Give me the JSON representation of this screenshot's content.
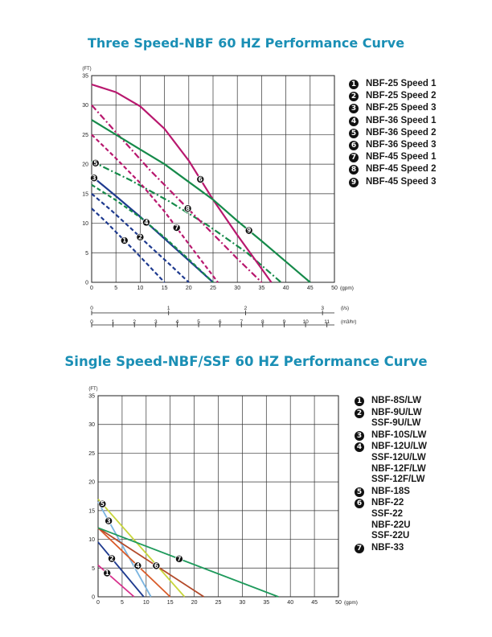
{
  "titles": {
    "chart1": "Three Speed-NBF 60 HZ Performance Curve",
    "chart2": "Single Speed-NBF/SSF 60 HZ Performance Curve"
  },
  "chart_data": [
    {
      "type": "line",
      "title": "Three Speed-NBF 60 HZ Performance Curve",
      "ylabel": "(FT)",
      "xlabel": "(gpm)",
      "xlim": [
        0,
        50
      ],
      "ylim": [
        0,
        35
      ],
      "x_ticks": [
        0,
        5,
        10,
        15,
        20,
        25,
        30,
        35,
        40,
        45,
        50
      ],
      "y_ticks": [
        0,
        5,
        10,
        15,
        20,
        25,
        30,
        35
      ],
      "grid": true,
      "legend_position": "right",
      "secondary_axes": [
        {
          "unit": "(l/s)",
          "ticks": [
            0,
            1,
            2,
            3
          ]
        },
        {
          "unit": "(m3/hr)",
          "ticks": [
            0,
            1,
            2,
            3,
            4,
            5,
            6,
            7,
            8,
            9,
            10,
            11
          ]
        }
      ],
      "series": [
        {
          "marker": "1",
          "name": "NBF-25 Speed 1",
          "color": "#1e3a8f",
          "style": "dashed",
          "x": [
            0,
            3,
            6,
            9,
            12,
            15
          ],
          "y": [
            12.5,
            10.2,
            7.7,
            5.2,
            2.6,
            0
          ]
        },
        {
          "marker": "2",
          "name": "NBF-25 Speed 2",
          "color": "#1e3a8f",
          "style": "dashed",
          "x": [
            0,
            4,
            8,
            12,
            16,
            20
          ],
          "y": [
            15,
            12.2,
            9.2,
            6.1,
            3.1,
            0
          ]
        },
        {
          "marker": "3",
          "name": "NBF-25 Speed 3",
          "color": "#1e3a8f",
          "style": "solid",
          "x": [
            0,
            5,
            10,
            15,
            20,
            25
          ],
          "y": [
            18,
            14.6,
            11.1,
            7.4,
            3.7,
            0
          ]
        },
        {
          "marker": "4",
          "name": "NBF-36 Speed 1",
          "color": "#168a4a",
          "style": "dashed",
          "x": [
            0,
            5,
            10,
            15,
            20,
            25
          ],
          "y": [
            16.5,
            13.9,
            11,
            7.6,
            3.9,
            0
          ]
        },
        {
          "marker": "5",
          "name": "NBF-36 Speed 2",
          "color": "#168a4a",
          "style": "dashdot",
          "x": [
            0,
            8,
            16,
            24,
            32,
            39
          ],
          "y": [
            20.5,
            17.3,
            13.7,
            9.6,
            5,
            0
          ]
        },
        {
          "marker": "6",
          "name": "NBF-36 Speed 3",
          "color": "#b8186e",
          "style": "solid",
          "x": [
            0,
            5,
            10,
            15,
            20,
            25,
            30,
            35,
            37
          ],
          "y": [
            33.5,
            32.2,
            29.8,
            26,
            20.6,
            14,
            8,
            2.3,
            0
          ]
        },
        {
          "marker": "7",
          "name": "NBF-45 Speed 1",
          "color": "#b8186e",
          "style": "dashed",
          "x": [
            0,
            5,
            10,
            15,
            20,
            26
          ],
          "y": [
            25,
            21,
            16.8,
            12,
            6.5,
            0
          ]
        },
        {
          "marker": "8",
          "name": "NBF-45 Speed 2",
          "color": "#b8186e",
          "style": "dashdot",
          "x": [
            0,
            6,
            12,
            18,
            24,
            30,
            35
          ],
          "y": [
            30,
            24.5,
            19,
            14,
            9,
            4,
            0
          ]
        },
        {
          "marker": "9",
          "name": "NBF-45 Speed 3",
          "color": "#168a4a",
          "style": "solid",
          "x": [
            0,
            5,
            10,
            15,
            20,
            25,
            30,
            35,
            40,
            45
          ],
          "y": [
            27.5,
            25,
            22.5,
            20,
            17,
            14,
            10.4,
            7,
            3.5,
            0
          ]
        }
      ]
    },
    {
      "type": "line",
      "title": "Single Speed-NBF/SSF 60 HZ Performance Curve",
      "ylabel": "(FT)",
      "xlabel": "(gpm)",
      "xlim": [
        0,
        50
      ],
      "ylim": [
        0,
        35
      ],
      "x_ticks": [
        0,
        5,
        10,
        15,
        20,
        25,
        30,
        35,
        40,
        45,
        50
      ],
      "y_ticks": [
        0,
        5,
        10,
        15,
        20,
        25,
        30,
        35
      ],
      "grid": true,
      "legend_position": "right",
      "series": [
        {
          "marker": "1",
          "names": [
            "NBF-8S/LW"
          ],
          "color": "#d8308c",
          "x": [
            0,
            7.5
          ],
          "y": [
            5.5,
            0
          ]
        },
        {
          "marker": "2",
          "names": [
            "NBF-9U/LW",
            "SSF-9U/LW"
          ],
          "color": "#1e3a8f",
          "x": [
            0,
            9.5
          ],
          "y": [
            9.5,
            0
          ]
        },
        {
          "marker": "3",
          "names": [
            "NBF-10S/LW"
          ],
          "color": "#7ab4e0",
          "x": [
            0,
            11
          ],
          "y": [
            16.5,
            0
          ]
        },
        {
          "marker": "4",
          "names": [
            "NBF-12U/LW",
            "SSF-12U/LW",
            "NBF-12F/LW",
            "SSF-12F/LW"
          ],
          "color": "#d95a28",
          "x": [
            0,
            15
          ],
          "y": [
            12,
            0
          ]
        },
        {
          "marker": "5",
          "names": [
            "NBF-18S"
          ],
          "color": "#c8d63c",
          "x": [
            0,
            18
          ],
          "y": [
            17,
            0
          ]
        },
        {
          "marker": "6",
          "names": [
            "NBF-22",
            "SSF-22",
            "NBF-22U",
            "SSF-22U"
          ],
          "color": "#b34a2a",
          "x": [
            0,
            22
          ],
          "y": [
            12,
            0
          ]
        },
        {
          "marker": "7",
          "names": [
            "NBF-33"
          ],
          "color": "#1f9a5c",
          "x": [
            0,
            37.5
          ],
          "y": [
            12,
            0
          ]
        }
      ]
    }
  ]
}
